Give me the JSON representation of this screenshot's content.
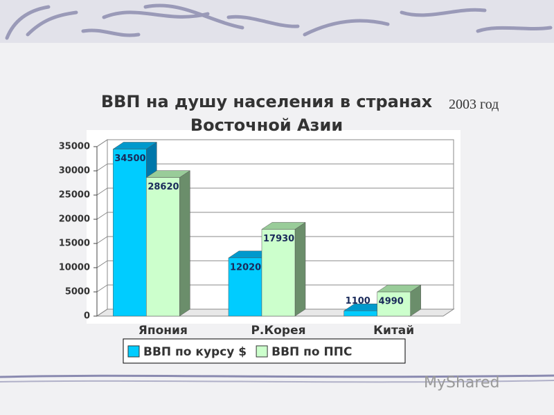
{
  "chart_data": {
    "type": "bar3d",
    "title": "ВВП на душу населения в странах Восточной Азии",
    "subtitle": "2003 год",
    "categories": [
      "Япония",
      "Р.Корея",
      "Китай"
    ],
    "series": [
      {
        "name": "ВВП по курсу $",
        "color": "#00ccff",
        "values": [
          34500,
          12020,
          1100
        ]
      },
      {
        "name": "ВВП по ППС",
        "color": "#ccffcc",
        "values": [
          28620,
          17930,
          4990
        ]
      }
    ],
    "ylim": [
      0,
      35000
    ],
    "yticks": [
      0,
      5000,
      10000,
      15000,
      20000,
      25000,
      30000,
      35000
    ],
    "grid": true
  },
  "watermark": "MyShared"
}
